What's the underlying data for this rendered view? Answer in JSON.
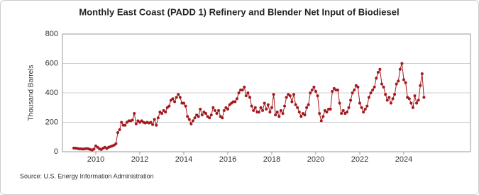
{
  "chart_data": {
    "type": "line",
    "title": "Monthly East Coast (PADD 1) Refinery and Blender Net Input of Biodiesel",
    "y_label": "Thousand Barrels",
    "source": "Source: U.S. Energy Information Administration",
    "color": "#a31a1f",
    "categories": [
      null,
      null,
      null,
      null,
      null,
      null,
      null,
      null,
      null,
      null,
      null,
      null,
      "2010",
      null,
      null,
      null,
      null,
      null,
      null,
      null,
      null,
      null,
      null,
      null,
      null,
      null,
      null,
      null,
      null,
      null,
      null,
      null,
      null,
      null,
      null,
      null,
      "2012",
      null,
      null,
      null,
      null,
      null,
      null,
      null,
      null,
      null,
      null,
      null,
      null,
      null,
      null,
      null,
      null,
      null,
      null,
      null,
      null,
      null,
      null,
      null,
      "2014",
      null,
      null,
      null,
      null,
      null,
      null,
      null,
      null,
      null,
      null,
      null,
      null,
      null,
      null,
      null,
      null,
      null,
      null,
      null,
      null,
      null,
      null,
      null,
      "2016",
      null,
      null,
      null,
      null,
      null,
      null,
      null,
      null,
      null,
      null,
      null,
      null,
      null,
      null,
      null,
      null,
      null,
      null,
      null,
      null,
      null,
      null,
      null,
      "2018",
      null,
      null,
      null,
      null,
      null,
      null,
      null,
      null,
      null,
      null,
      null,
      null,
      null,
      null,
      null,
      null,
      null,
      null,
      null,
      null,
      null,
      null,
      null,
      "2020",
      null,
      null,
      null,
      null,
      null,
      null,
      null,
      null,
      null,
      null,
      null,
      null,
      null,
      null,
      null,
      null,
      null,
      null,
      null,
      null,
      null,
      null,
      null,
      "2022",
      null,
      null,
      null,
      null,
      null,
      null,
      null,
      null,
      null,
      null,
      null,
      null,
      null,
      null,
      null,
      null,
      null,
      null,
      null,
      null,
      null,
      null,
      null,
      "2024",
      null,
      null,
      null,
      null,
      null,
      null,
      null,
      null,
      null,
      null,
      null
    ],
    "values": [
      25,
      25,
      22,
      20,
      20,
      18,
      20,
      22,
      20,
      15,
      12,
      18,
      40,
      30,
      20,
      15,
      25,
      30,
      22,
      30,
      35,
      40,
      45,
      55,
      130,
      150,
      200,
      180,
      180,
      200,
      210,
      210,
      215,
      260,
      190,
      210,
      200,
      210,
      200,
      195,
      200,
      195,
      200,
      185,
      220,
      180,
      230,
      270,
      260,
      280,
      270,
      300,
      310,
      350,
      360,
      340,
      370,
      390,
      370,
      330,
      330,
      310,
      240,
      220,
      190,
      210,
      230,
      250,
      240,
      290,
      250,
      270,
      260,
      240,
      230,
      250,
      300,
      280,
      260,
      280,
      240,
      230,
      280,
      300,
      290,
      320,
      330,
      340,
      340,
      360,
      400,
      420,
      420,
      440,
      380,
      400,
      370,
      310,
      280,
      300,
      270,
      270,
      300,
      280,
      330,
      290,
      320,
      270,
      300,
      390,
      250,
      270,
      240,
      280,
      260,
      310,
      370,
      390,
      380,
      340,
      390,
      320,
      300,
      270,
      240,
      260,
      250,
      300,
      320,
      400,
      420,
      440,
      410,
      380,
      260,
      210,
      240,
      280,
      270,
      290,
      290,
      410,
      430,
      420,
      420,
      330,
      260,
      280,
      260,
      270,
      300,
      350,
      400,
      420,
      450,
      440,
      330,
      300,
      270,
      290,
      310,
      370,
      400,
      420,
      440,
      500,
      540,
      560,
      460,
      440,
      390,
      350,
      370,
      330,
      360,
      390,
      460,
      480,
      560,
      600,
      490,
      470,
      370,
      360,
      330,
      300,
      380,
      330,
      350,
      450,
      530,
      370
    ],
    "ylim": [
      0,
      800
    ],
    "yticks": [
      0,
      200,
      400,
      600,
      800
    ],
    "grid": true
  }
}
